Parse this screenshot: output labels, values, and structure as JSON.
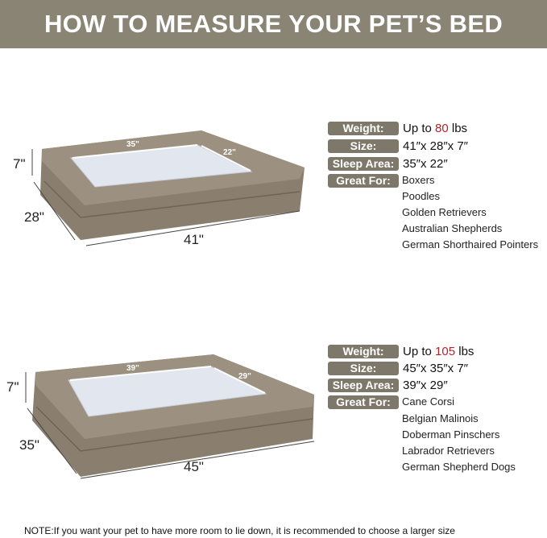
{
  "title": "HOW TO MEASURE YOUR PET’S BED",
  "colors": {
    "header": "#8a8475",
    "badge": "#7e786b",
    "highlight": "#b0252a",
    "bed": "#8a7f6e"
  },
  "beds": [
    {
      "dims": {
        "height": "7\"",
        "depth": "28\"",
        "width": "41\"",
        "sleep_w": "35\"",
        "sleep_d": "22\""
      },
      "labels": {
        "weight": "Weight:",
        "size": "Size:",
        "sleep": "Sleep Area:",
        "great": "Great For:"
      },
      "weight_prefix": "Up to ",
      "weight_value": "80",
      "weight_unit": " lbs",
      "size": "41″x 28″x 7″",
      "sleep_area": "35″x 22″",
      "breeds": [
        "Boxers",
        "Poodles",
        "Golden Retrievers",
        "Australian Shepherds",
        "German Shorthaired Pointers"
      ]
    },
    {
      "dims": {
        "height": "7\"",
        "depth": "35\"",
        "width": "45\"",
        "sleep_w": "39\"",
        "sleep_d": "29\""
      },
      "labels": {
        "weight": "Weight:",
        "size": "Size:",
        "sleep": "Sleep Area:",
        "great": "Great For:"
      },
      "weight_prefix": "Up to ",
      "weight_value": "105",
      "weight_unit": " lbs",
      "size": "45″x 35″x 7″",
      "sleep_area": "39″x 29″",
      "breeds": [
        "Cane Corsi",
        "Belgian Malinois",
        "Doberman Pinschers",
        "Labrador Retrievers",
        "German Shepherd Dogs"
      ]
    }
  ],
  "note": "NOTE:If you want your pet to have more room to lie down, it is recommended to choose a larger size"
}
